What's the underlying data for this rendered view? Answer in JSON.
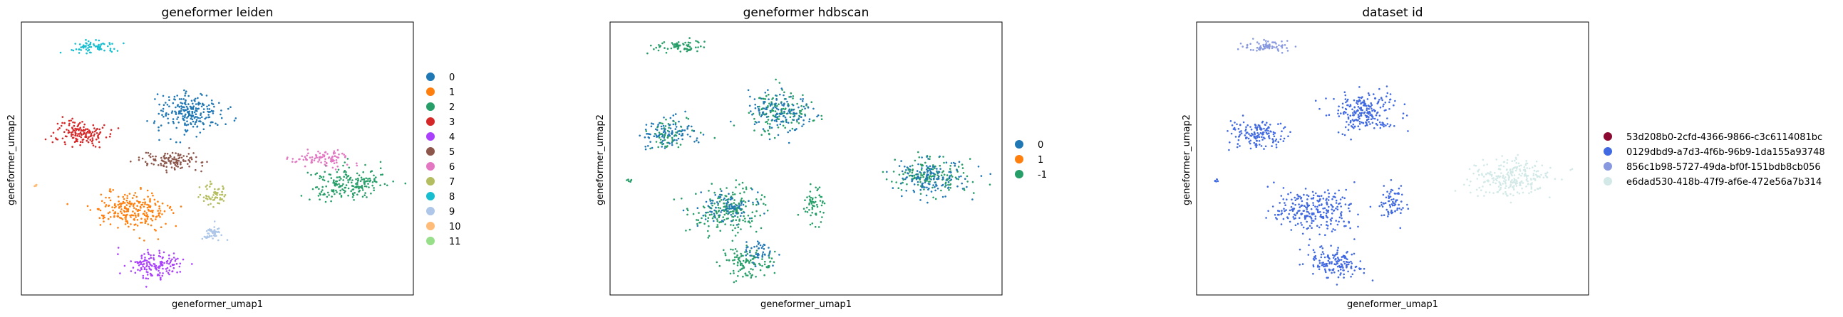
{
  "figure": {
    "background": "#ffffff"
  },
  "chart_data": [
    {
      "type": "scatter",
      "title": "geneformer leiden",
      "xlabel": "geneformer_umap1",
      "ylabel": "geneformer_umap2",
      "grid": false,
      "legend_position": "right",
      "legend": [
        {
          "label": "0",
          "color": "#1f77b4"
        },
        {
          "label": "1",
          "color": "#ff7f0e"
        },
        {
          "label": "2",
          "color": "#279e68"
        },
        {
          "label": "3",
          "color": "#d62728"
        },
        {
          "label": "4",
          "color": "#aa40fc"
        },
        {
          "label": "5",
          "color": "#8c564b"
        },
        {
          "label": "6",
          "color": "#e377c2"
        },
        {
          "label": "7",
          "color": "#b5bd61"
        },
        {
          "label": "8",
          "color": "#17becf"
        },
        {
          "label": "9",
          "color": "#aec7e8"
        },
        {
          "label": "10",
          "color": "#ffbb78"
        },
        {
          "label": "11",
          "color": "#98df8a"
        }
      ],
      "clusters": [
        {
          "category": "0",
          "center": [
            0.43,
            0.67
          ],
          "spread": [
            0.075,
            0.065
          ],
          "n": 230
        },
        {
          "category": "1",
          "center": [
            0.28,
            0.31
          ],
          "spread": [
            0.085,
            0.06
          ],
          "n": 240
        },
        {
          "category": "2",
          "center": [
            0.83,
            0.41
          ],
          "spread": [
            0.085,
            0.055
          ],
          "n": 200
        },
        {
          "category": "3",
          "center": [
            0.15,
            0.59
          ],
          "spread": [
            0.06,
            0.045
          ],
          "n": 150
        },
        {
          "category": "4",
          "center": [
            0.34,
            0.11
          ],
          "spread": [
            0.06,
            0.05
          ],
          "n": 150
        },
        {
          "category": "5",
          "center": [
            0.39,
            0.49
          ],
          "spread": [
            0.075,
            0.028
          ],
          "n": 120
        },
        {
          "category": "6",
          "center": [
            0.77,
            0.5
          ],
          "spread": [
            0.075,
            0.025
          ],
          "n": 90
        },
        {
          "category": "7",
          "center": [
            0.49,
            0.37
          ],
          "spread": [
            0.03,
            0.035
          ],
          "n": 60
        },
        {
          "category": "8",
          "center": [
            0.18,
            0.91
          ],
          "spread": [
            0.055,
            0.02
          ],
          "n": 70
        },
        {
          "category": "9",
          "center": [
            0.49,
            0.23
          ],
          "spread": [
            0.025,
            0.025
          ],
          "n": 50
        },
        {
          "category": "10",
          "center": [
            0.04,
            0.4
          ],
          "spread": [
            0.008,
            0.005
          ],
          "n": 5
        }
      ]
    },
    {
      "type": "scatter",
      "title": "geneformer hdbscan",
      "xlabel": "geneformer_umap1",
      "ylabel": "geneformer_umap2",
      "grid": false,
      "legend_position": "right",
      "legend": [
        {
          "label": "0",
          "color": "#1f77b4"
        },
        {
          "label": "1",
          "color": "#ff7f0e"
        },
        {
          "label": "-1",
          "color": "#279e68"
        }
      ],
      "clusters": [
        {
          "category": "-1",
          "center": [
            0.43,
            0.67
          ],
          "spread": [
            0.075,
            0.065
          ],
          "n": 130
        },
        {
          "category": "0",
          "center": [
            0.43,
            0.67
          ],
          "spread": [
            0.075,
            0.065
          ],
          "n": 130
        },
        {
          "category": "0",
          "center": [
            0.15,
            0.59
          ],
          "spread": [
            0.06,
            0.045
          ],
          "n": 110
        },
        {
          "category": "-1",
          "center": [
            0.15,
            0.59
          ],
          "spread": [
            0.06,
            0.045
          ],
          "n": 50
        },
        {
          "category": "-1",
          "center": [
            0.3,
            0.31
          ],
          "spread": [
            0.09,
            0.07
          ],
          "n": 200
        },
        {
          "category": "0",
          "center": [
            0.3,
            0.32
          ],
          "spread": [
            0.07,
            0.05
          ],
          "n": 90
        },
        {
          "category": "-1",
          "center": [
            0.35,
            0.12
          ],
          "spread": [
            0.06,
            0.05
          ],
          "n": 110
        },
        {
          "category": "0",
          "center": [
            0.38,
            0.16
          ],
          "spread": [
            0.04,
            0.04
          ],
          "n": 45
        },
        {
          "category": "-1",
          "center": [
            0.52,
            0.33
          ],
          "spread": [
            0.03,
            0.06
          ],
          "n": 60
        },
        {
          "category": "-1",
          "center": [
            0.82,
            0.44
          ],
          "spread": [
            0.09,
            0.065
          ],
          "n": 150
        },
        {
          "category": "0",
          "center": [
            0.82,
            0.43
          ],
          "spread": [
            0.085,
            0.06
          ],
          "n": 140
        },
        {
          "category": "-1",
          "center": [
            0.18,
            0.91
          ],
          "spread": [
            0.055,
            0.02
          ],
          "n": 70
        },
        {
          "category": "-1",
          "center": [
            0.05,
            0.42
          ],
          "spread": [
            0.008,
            0.006
          ],
          "n": 6
        }
      ]
    },
    {
      "type": "scatter",
      "title": "dataset id",
      "xlabel": "geneformer_umap1",
      "ylabel": "geneformer_umap2",
      "grid": false,
      "legend_position": "right",
      "legend": [
        {
          "label": "53d208b0-2cfd-4366-9866-c3c6114081bc",
          "color": "#8b0a32"
        },
        {
          "label": "0129dbd9-a7d3-4f6b-96b9-1da155a93748",
          "color": "#4169e1"
        },
        {
          "label": "856c1b98-5727-49da-bf0f-151bdb8cb056",
          "color": "#8899e0"
        },
        {
          "label": "e6dad530-418b-47f9-af6e-472e56a7b314",
          "color": "#d2e9e7"
        }
      ],
      "clusters": [
        {
          "category": "0129dbd9-a7d3-4f6b-96b9-1da155a93748",
          "center": [
            0.43,
            0.67
          ],
          "spread": [
            0.075,
            0.065
          ],
          "n": 230
        },
        {
          "category": "0129dbd9-a7d3-4f6b-96b9-1da155a93748",
          "center": [
            0.15,
            0.59
          ],
          "spread": [
            0.06,
            0.045
          ],
          "n": 150
        },
        {
          "category": "0129dbd9-a7d3-4f6b-96b9-1da155a93748",
          "center": [
            0.3,
            0.31
          ],
          "spread": [
            0.09,
            0.07
          ],
          "n": 260
        },
        {
          "category": "0129dbd9-a7d3-4f6b-96b9-1da155a93748",
          "center": [
            0.35,
            0.12
          ],
          "spread": [
            0.06,
            0.05
          ],
          "n": 150
        },
        {
          "category": "0129dbd9-a7d3-4f6b-96b9-1da155a93748",
          "center": [
            0.5,
            0.33
          ],
          "spread": [
            0.03,
            0.06
          ],
          "n": 70
        },
        {
          "category": "0129dbd9-a7d3-4f6b-96b9-1da155a93748",
          "center": [
            0.05,
            0.42
          ],
          "spread": [
            0.008,
            0.006
          ],
          "n": 6
        },
        {
          "category": "856c1b98-5727-49da-bf0f-151bdb8cb056",
          "center": [
            0.18,
            0.91
          ],
          "spread": [
            0.055,
            0.02
          ],
          "n": 70
        },
        {
          "category": "e6dad530-418b-47f9-af6e-472e56a7b314",
          "center": [
            0.8,
            0.43
          ],
          "spread": [
            0.09,
            0.06
          ],
          "n": 260
        }
      ]
    }
  ]
}
